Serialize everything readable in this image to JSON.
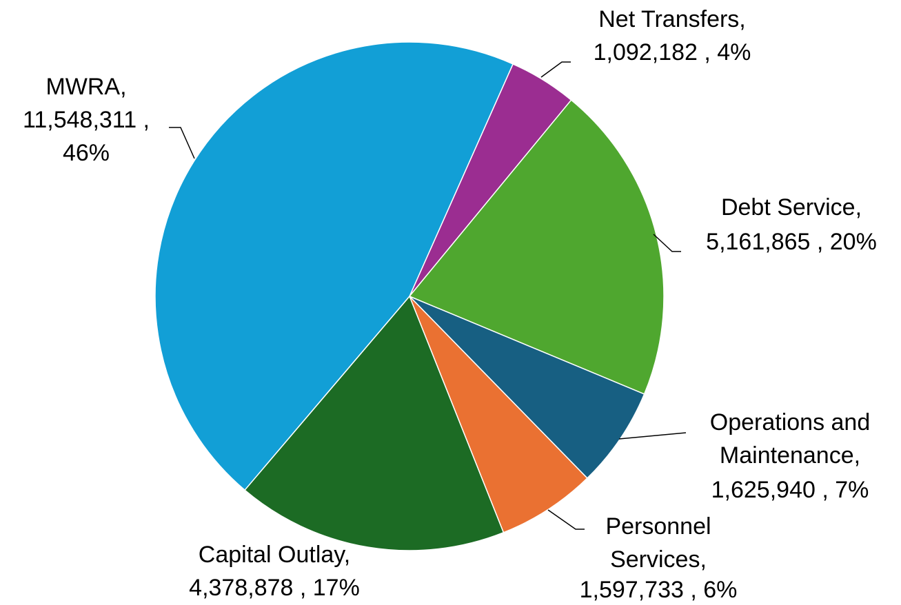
{
  "chart_data": {
    "type": "pie",
    "values": [
      1092182,
      5161865,
      1625940,
      1597733,
      4378878,
      11548311
    ],
    "value_labels": [
      [
        "Net Transfers,",
        "1,092,182 , 4%"
      ],
      [
        "Debt Service,",
        "5,161,865 , 20%"
      ],
      [
        "Operations and",
        "Maintenance,",
        "1,625,940 , 7%"
      ],
      [
        "Personnel",
        "Services,",
        "1,597,733 , 6%"
      ],
      [
        "Capital Outlay,",
        "4,378,878 , 17%"
      ],
      [
        "MWRA,",
        "11,548,311 ,",
        "46%"
      ]
    ],
    "colors": [
      "#9b2d91",
      "#4fa72f",
      "#175f82",
      "#ea7132",
      "#1c6b24",
      "#129fd6"
    ]
  }
}
